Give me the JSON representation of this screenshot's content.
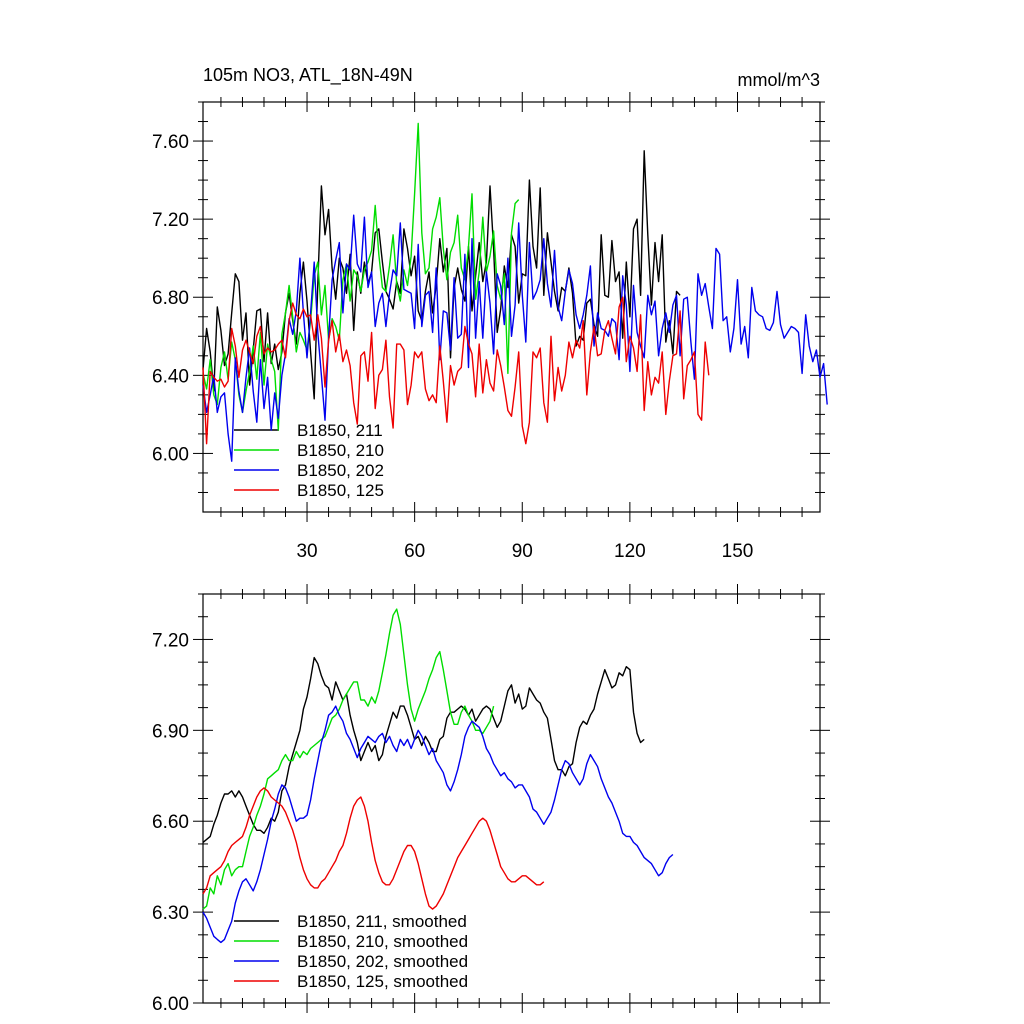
{
  "chart_data": [
    {
      "type": "line",
      "title": "105m NO3, ATL_18N-49N",
      "units": "mmol/m^3",
      "xlim": [
        1,
        173
      ],
      "ylim": [
        5.7,
        7.8
      ],
      "x_ticks": [
        30,
        60,
        90,
        120,
        150
      ],
      "y_ticks": [
        "6.00",
        "6.40",
        "6.80",
        "7.20",
        "7.60"
      ],
      "legend_position": "bottom-left",
      "series": [
        {
          "name": "B1850, 211",
          "color": "#000000",
          "x_start": 1,
          "values": [
            6.43,
            6.64,
            6.52,
            6.32,
            6.75,
            6.63,
            6.45,
            6.51,
            6.72,
            6.92,
            6.88,
            6.58,
            6.72,
            6.35,
            6.53,
            6.73,
            6.74,
            6.47,
            6.72,
            6.46,
            6.56,
            6.43,
            6.52,
            6.72,
            6.82,
            6.68,
            6.56,
            6.82,
            6.98,
            6.78,
            6.52,
            6.28,
            6.87,
            7.37,
            7.12,
            7.25,
            6.95,
            6.79,
            7.0,
            6.95,
            6.82,
            7.02,
            6.63,
            6.93,
            6.82,
            6.98,
            6.87,
            6.93,
            7.13,
            7.15,
            6.98,
            6.83,
            6.79,
            6.74,
            6.88,
            6.82,
            7.15,
            7.05,
            6.91,
            7.01,
            6.73,
            6.68,
            6.83,
            6.93,
            6.72,
            6.86,
            7.1,
            6.93,
            7.05,
            6.49,
            6.85,
            6.95,
            6.84,
            6.78,
            7.06,
            6.73,
            6.91,
            7.08,
            6.88,
            6.98,
            7.37,
            7.05,
            6.62,
            6.74,
            6.96,
            6.85,
            7.12,
            7.06,
            6.77,
            6.92,
            6.91,
            7.4,
            7.06,
            6.95,
            7.36,
            6.81,
            7.13,
            6.98,
            6.83,
            6.73,
            6.85,
            6.83,
            6.95,
            6.82,
            6.55,
            6.6,
            6.58,
            6.77,
            6.79,
            6.66,
            6.6,
            7.12,
            6.81,
            6.8,
            7.09,
            6.88,
            6.93,
            6.59,
            6.98,
            6.7,
            7.15,
            7.2,
            6.81,
            7.55,
            7.12,
            6.76,
            7.08,
            6.88,
            7.12,
            6.57,
            6.68,
            6.51,
            6.83,
            6.81
          ]
        },
        {
          "name": "B1850, 210",
          "color": "#00dd00",
          "x_start": 1,
          "values": [
            6.41,
            6.33,
            6.48,
            6.3,
            6.25,
            6.44,
            6.52,
            6.38,
            6.57,
            6.48,
            6.3,
            6.21,
            6.32,
            6.42,
            6.55,
            6.38,
            6.62,
            6.35,
            6.56,
            6.48,
            6.42,
            6.12,
            6.61,
            6.72,
            6.86,
            6.7,
            6.52,
            6.62,
            6.58,
            6.53,
            6.68,
            6.91,
            6.98,
            6.71,
            6.86,
            6.58,
            6.69,
            6.65,
            6.58,
            6.89,
            6.97,
            6.78,
            6.94,
            6.91,
            6.83,
            6.94,
            6.98,
            7.04,
            7.27,
            7.02,
            6.85,
            6.83,
            6.96,
            7.12,
            6.87,
            6.78,
            6.94,
            6.86,
            7.01,
            7.33,
            7.69,
            7.13,
            6.92,
            6.95,
            7.15,
            7.21,
            7.31,
            7.05,
            6.89,
            7.03,
            7.08,
            7.22,
            6.95,
            6.89,
            7.06,
            7.33,
            6.79,
            6.93,
            7.21,
            6.93,
            7.01,
            7.14,
            6.86,
            6.79,
            6.92,
            6.41,
            7.13,
            7.28,
            7.3
          ]
        },
        {
          "name": "B1850, 202",
          "color": "#0000ee",
          "x_start": 1,
          "values": [
            6.35,
            6.21,
            6.3,
            6.4,
            6.21,
            6.29,
            6.31,
            6.1,
            5.96,
            6.49,
            6.32,
            6.21,
            6.39,
            6.54,
            6.32,
            6.16,
            6.48,
            6.23,
            6.39,
            6.12,
            6.31,
            6.18,
            6.4,
            6.51,
            6.69,
            6.61,
            6.73,
            7.0,
            6.72,
            6.49,
            6.72,
            6.98,
            6.62,
            6.4,
            6.17,
            6.59,
            6.89,
            6.99,
            7.08,
            6.72,
            6.97,
            6.94,
            7.22,
            6.97,
            6.93,
            7.21,
            6.85,
            6.93,
            6.65,
            6.77,
            6.82,
            6.65,
            6.82,
            6.94,
            6.91,
            7.18,
            6.84,
            6.83,
            6.82,
            6.64,
            7.07,
            6.65,
            6.81,
            6.83,
            6.62,
            6.95,
            6.48,
            6.73,
            6.72,
            6.53,
            6.9,
            6.59,
            6.61,
            7.02,
            6.44,
            7.1,
            6.59,
            6.88,
            6.59,
            6.93,
            6.77,
            6.51,
            6.92,
            6.86,
            6.66,
            7.0,
            6.6,
            6.76,
            7.18,
            6.81,
            6.57,
            7.08,
            6.79,
            6.83,
            6.89,
            7.1,
            6.87,
            6.75,
            7.04,
            6.75,
            6.68,
            6.83,
            6.94,
            6.87,
            6.71,
            6.64,
            6.71,
            6.81,
            6.96,
            6.55,
            6.72,
            6.64,
            6.63,
            6.6,
            6.69,
            6.67,
            6.48,
            6.91,
            6.76,
            6.42,
            6.86,
            6.62,
            6.55,
            6.49,
            6.81,
            6.71,
            6.78,
            6.5,
            6.64,
            6.72,
            6.62,
            6.76,
            6.81,
            6.5,
            6.79,
            6.8,
            6.57,
            6.38,
            6.92,
            6.81,
            6.87,
            6.75,
            6.64,
            7.05,
            7.02,
            6.68,
            6.7,
            6.52,
            6.64,
            6.89,
            6.56,
            6.65,
            6.49,
            6.85,
            6.73,
            6.71,
            6.7,
            6.64,
            6.63,
            6.67,
            6.83,
            6.66,
            6.59,
            6.62,
            6.65,
            6.64,
            6.62,
            6.41,
            6.71,
            6.55,
            6.47,
            6.53,
            6.39,
            6.46,
            6.25
          ]
        },
        {
          "name": "B1850, 125",
          "color": "#ee0000",
          "x_start": 1,
          "values": [
            6.44,
            6.05,
            6.42,
            6.39,
            6.37,
            6.38,
            6.34,
            6.37,
            6.64,
            6.55,
            6.39,
            6.53,
            6.58,
            6.52,
            6.46,
            6.6,
            6.65,
            6.51,
            6.54,
            6.52,
            6.53,
            6.56,
            6.58,
            6.49,
            6.68,
            6.77,
            6.71,
            6.69,
            6.74,
            6.7,
            6.71,
            6.58,
            6.71,
            6.59,
            6.34,
            6.58,
            6.68,
            6.52,
            6.61,
            6.47,
            6.53,
            6.45,
            6.26,
            6.15,
            6.5,
            6.52,
            6.37,
            6.62,
            6.23,
            6.4,
            6.43,
            6.58,
            6.29,
            6.13,
            6.56,
            6.56,
            6.53,
            6.25,
            6.35,
            6.52,
            6.49,
            6.52,
            6.33,
            6.27,
            6.3,
            6.26,
            6.55,
            6.37,
            6.16,
            6.45,
            6.35,
            6.42,
            6.44,
            6.65,
            6.56,
            6.51,
            6.29,
            6.56,
            6.31,
            6.48,
            6.36,
            6.32,
            6.53,
            6.45,
            6.34,
            6.22,
            6.19,
            6.34,
            6.52,
            6.14,
            6.05,
            6.16,
            6.52,
            6.49,
            6.54,
            6.26,
            6.16,
            6.6,
            6.27,
            6.44,
            6.32,
            6.4,
            6.57,
            6.49,
            6.58,
            6.54,
            6.68,
            6.3,
            6.52,
            6.65,
            6.5,
            6.51,
            6.63,
            6.68,
            6.59,
            6.51,
            6.75,
            6.8,
            6.47,
            6.6,
            6.54,
            6.42,
            6.71,
            6.22,
            6.47,
            6.3,
            6.39,
            6.36,
            6.52,
            6.2,
            6.37,
            6.5,
            6.51,
            6.73,
            6.28,
            6.45,
            6.48,
            6.52,
            6.2,
            6.17,
            6.57,
            6.4
          ]
        }
      ]
    },
    {
      "type": "line",
      "xlim": [
        1,
        173
      ],
      "ylim": [
        6.0,
        7.35
      ],
      "y_ticks": [
        "6.00",
        "6.30",
        "6.60",
        "6.90",
        "7.20"
      ],
      "legend_position": "bottom-left",
      "series": [
        {
          "name": "B1850, 211, smoothed",
          "color": "#000000",
          "x_start": 1,
          "values": [
            6.53,
            6.54,
            6.55,
            6.59,
            6.62,
            6.66,
            6.69,
            6.69,
            6.7,
            6.68,
            6.7,
            6.68,
            6.65,
            6.62,
            6.59,
            6.57,
            6.57,
            6.56,
            6.58,
            6.61,
            6.6,
            6.63,
            6.7,
            6.72,
            6.78,
            6.82,
            6.86,
            6.9,
            6.97,
            7.01,
            7.07,
            7.14,
            7.12,
            7.08,
            7.05,
            7.04,
            7.0,
            7.06,
            7.03,
            7.0,
            7.02,
            6.95,
            6.9,
            6.86,
            6.8,
            6.83,
            6.86,
            6.83,
            6.85,
            6.8,
            6.82,
            6.88,
            6.92,
            6.96,
            6.94,
            6.98,
            6.98,
            6.95,
            6.91,
            6.87,
            6.88,
            6.85,
            6.88,
            6.86,
            6.83,
            6.83,
            6.87,
            6.88,
            6.94,
            6.96,
            6.96,
            6.97,
            6.98,
            6.97,
            6.95,
            6.97,
            6.93,
            6.95,
            6.97,
            6.98,
            6.97,
            6.94,
            6.91,
            6.93,
            6.98,
            7.03,
            7.05,
            6.99,
            7.02,
            6.97,
            6.98,
            7.04,
            7.02,
            7.0,
            6.99,
            6.96,
            6.94,
            6.87,
            6.8,
            6.77,
            6.77,
            6.75,
            6.78,
            6.79,
            6.86,
            6.91,
            6.93,
            6.92,
            6.95,
            6.97,
            7.02,
            7.06,
            7.1,
            7.07,
            7.04,
            7.05,
            7.09,
            7.08,
            7.11,
            7.1,
            6.96,
            6.89,
            6.86,
            6.87
          ]
        },
        {
          "name": "B1850, 210, smoothed",
          "color": "#00dd00",
          "x_start": 1,
          "values": [
            6.31,
            6.32,
            6.38,
            6.36,
            6.42,
            6.39,
            6.44,
            6.46,
            6.42,
            6.44,
            6.45,
            6.45,
            6.5,
            6.55,
            6.58,
            6.62,
            6.65,
            6.69,
            6.74,
            6.75,
            6.76,
            6.77,
            6.8,
            6.82,
            6.8,
            6.8,
            6.83,
            6.81,
            6.83,
            6.82,
            6.84,
            6.85,
            6.86,
            6.87,
            6.88,
            6.91,
            6.94,
            6.95,
            6.97,
            7.0,
            7.02,
            7.04,
            7.06,
            7.06,
            7.0,
            7.0,
            6.98,
            7.01,
            6.99,
            7.03,
            7.09,
            7.15,
            7.22,
            7.28,
            7.3,
            7.25,
            7.15,
            7.05,
            6.97,
            6.93,
            6.97,
            7.0,
            7.03,
            7.07,
            7.1,
            7.14,
            7.16,
            7.1,
            7.03,
            6.96,
            6.92,
            6.92,
            6.96,
            6.98,
            6.95,
            6.93,
            6.9,
            6.9,
            6.89,
            6.91,
            6.93,
            6.98
          ]
        },
        {
          "name": "B1850, 202, smoothed",
          "color": "#0000ee",
          "x_start": 1,
          "values": [
            6.3,
            6.28,
            6.25,
            6.22,
            6.21,
            6.2,
            6.21,
            6.24,
            6.27,
            6.33,
            6.37,
            6.4,
            6.41,
            6.39,
            6.37,
            6.4,
            6.44,
            6.49,
            6.54,
            6.6,
            6.64,
            6.69,
            6.72,
            6.71,
            6.68,
            6.64,
            6.6,
            6.61,
            6.61,
            6.62,
            6.67,
            6.74,
            6.8,
            6.86,
            6.9,
            6.95,
            6.96,
            6.98,
            6.95,
            6.93,
            6.89,
            6.87,
            6.84,
            6.81,
            6.84,
            6.86,
            6.88,
            6.87,
            6.86,
            6.88,
            6.89,
            6.86,
            6.88,
            6.85,
            6.83,
            6.87,
            6.85,
            6.87,
            6.84,
            6.87,
            6.9,
            6.88,
            6.85,
            6.82,
            6.84,
            6.8,
            6.78,
            6.76,
            6.72,
            6.7,
            6.73,
            6.77,
            6.82,
            6.88,
            6.91,
            6.93,
            6.92,
            6.91,
            6.88,
            6.84,
            6.82,
            6.79,
            6.77,
            6.75,
            6.76,
            6.74,
            6.73,
            6.71,
            6.72,
            6.72,
            6.7,
            6.68,
            6.64,
            6.63,
            6.61,
            6.59,
            6.61,
            6.63,
            6.67,
            6.72,
            6.77,
            6.8,
            6.79,
            6.76,
            6.74,
            6.72,
            6.74,
            6.79,
            6.82,
            6.8,
            6.78,
            6.74,
            6.71,
            6.68,
            6.66,
            6.63,
            6.6,
            6.56,
            6.55,
            6.55,
            6.53,
            6.52,
            6.5,
            6.48,
            6.47,
            6.46,
            6.44,
            6.42,
            6.43,
            6.46,
            6.48,
            6.49
          ]
        },
        {
          "name": "B1850, 125, smoothed",
          "color": "#ee0000",
          "x_start": 1,
          "values": [
            6.36,
            6.38,
            6.42,
            6.43,
            6.44,
            6.45,
            6.47,
            6.5,
            6.52,
            6.53,
            6.54,
            6.55,
            6.58,
            6.62,
            6.65,
            6.68,
            6.7,
            6.71,
            6.7,
            6.68,
            6.67,
            6.66,
            6.65,
            6.63,
            6.6,
            6.57,
            6.53,
            6.48,
            6.44,
            6.41,
            6.39,
            6.38,
            6.38,
            6.4,
            6.41,
            6.43,
            6.45,
            6.47,
            6.5,
            6.52,
            6.56,
            6.61,
            6.65,
            6.67,
            6.68,
            6.65,
            6.6,
            6.53,
            6.47,
            6.43,
            6.4,
            6.39,
            6.39,
            6.41,
            6.44,
            6.47,
            6.5,
            6.52,
            6.52,
            6.5,
            6.46,
            6.41,
            6.36,
            6.32,
            6.31,
            6.32,
            6.34,
            6.36,
            6.39,
            6.42,
            6.45,
            6.48,
            6.5,
            6.52,
            6.54,
            6.56,
            6.58,
            6.6,
            6.61,
            6.6,
            6.57,
            6.53,
            6.49,
            6.45,
            6.43,
            6.41,
            6.4,
            6.4,
            6.41,
            6.42,
            6.42,
            6.41,
            6.4,
            6.39,
            6.39,
            6.4
          ]
        }
      ]
    }
  ]
}
